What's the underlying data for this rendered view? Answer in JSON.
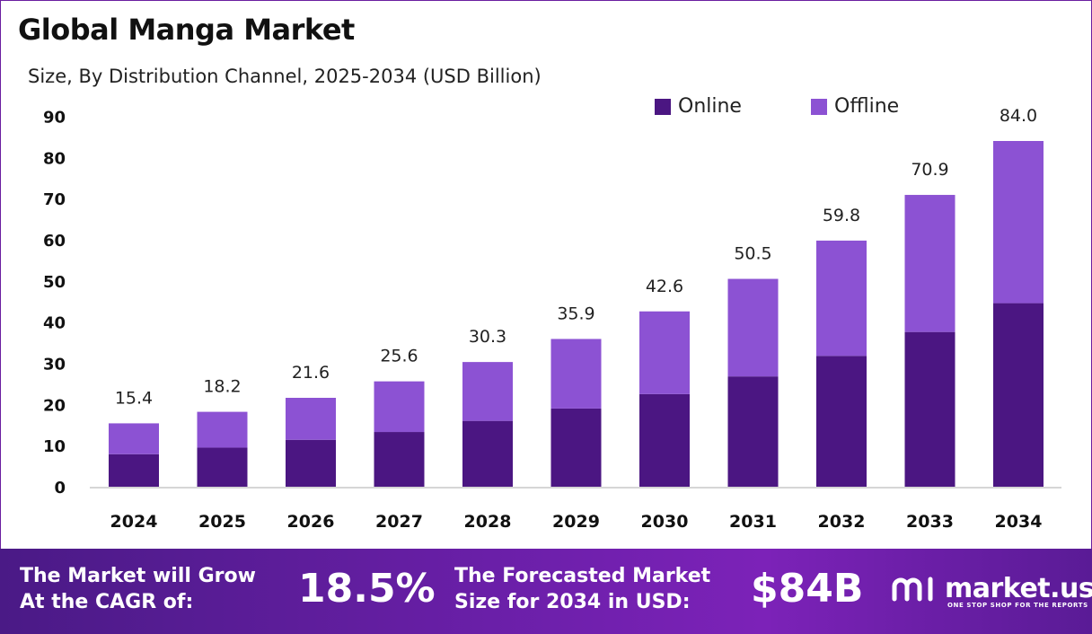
{
  "title": "Global Manga Market",
  "subtitle": "Size, By Distribution Channel, 2025-2034 (USD Billion)",
  "colors": {
    "online": "#4b1682",
    "offline": "#8c52d3",
    "footer": "#6a1fa8",
    "border": "#6a1fa0"
  },
  "chart_data": {
    "type": "bar",
    "stacked": true,
    "categories": [
      "2024",
      "2025",
      "2026",
      "2027",
      "2028",
      "2029",
      "2030",
      "2031",
      "2032",
      "2033",
      "2034"
    ],
    "series": [
      {
        "name": "Online",
        "values": [
          7.9,
          9.5,
          11.4,
          13.3,
          16.0,
          19.0,
          22.5,
          26.8,
          31.8,
          37.6,
          44.6
        ]
      },
      {
        "name": "Offline",
        "values": [
          7.5,
          8.7,
          10.2,
          12.3,
          14.3,
          16.9,
          20.1,
          23.7,
          28.0,
          33.3,
          39.4
        ]
      }
    ],
    "totals": [
      "15.4",
      "18.2",
      "21.6",
      "25.6",
      "30.3",
      "35.9",
      "42.6",
      "50.5",
      "59.8",
      "70.9",
      "84.0"
    ],
    "yticks": [
      "0",
      "10",
      "20",
      "30",
      "40",
      "50",
      "60",
      "70",
      "80",
      "90"
    ],
    "ylim": [
      0,
      90
    ],
    "grid": false,
    "legend_position": "top-right"
  },
  "footer": {
    "cagr_line1": "The Market will Grow",
    "cagr_line2": "At the CAGR of:",
    "cagr_value": "18.5%",
    "forecast_line1": "The Forecasted Market",
    "forecast_line2": "Size for 2034 in USD:",
    "forecast_value": "$84B",
    "brand_name": "market.us",
    "brand_tagline": "ONE STOP SHOP FOR THE REPORTS"
  }
}
